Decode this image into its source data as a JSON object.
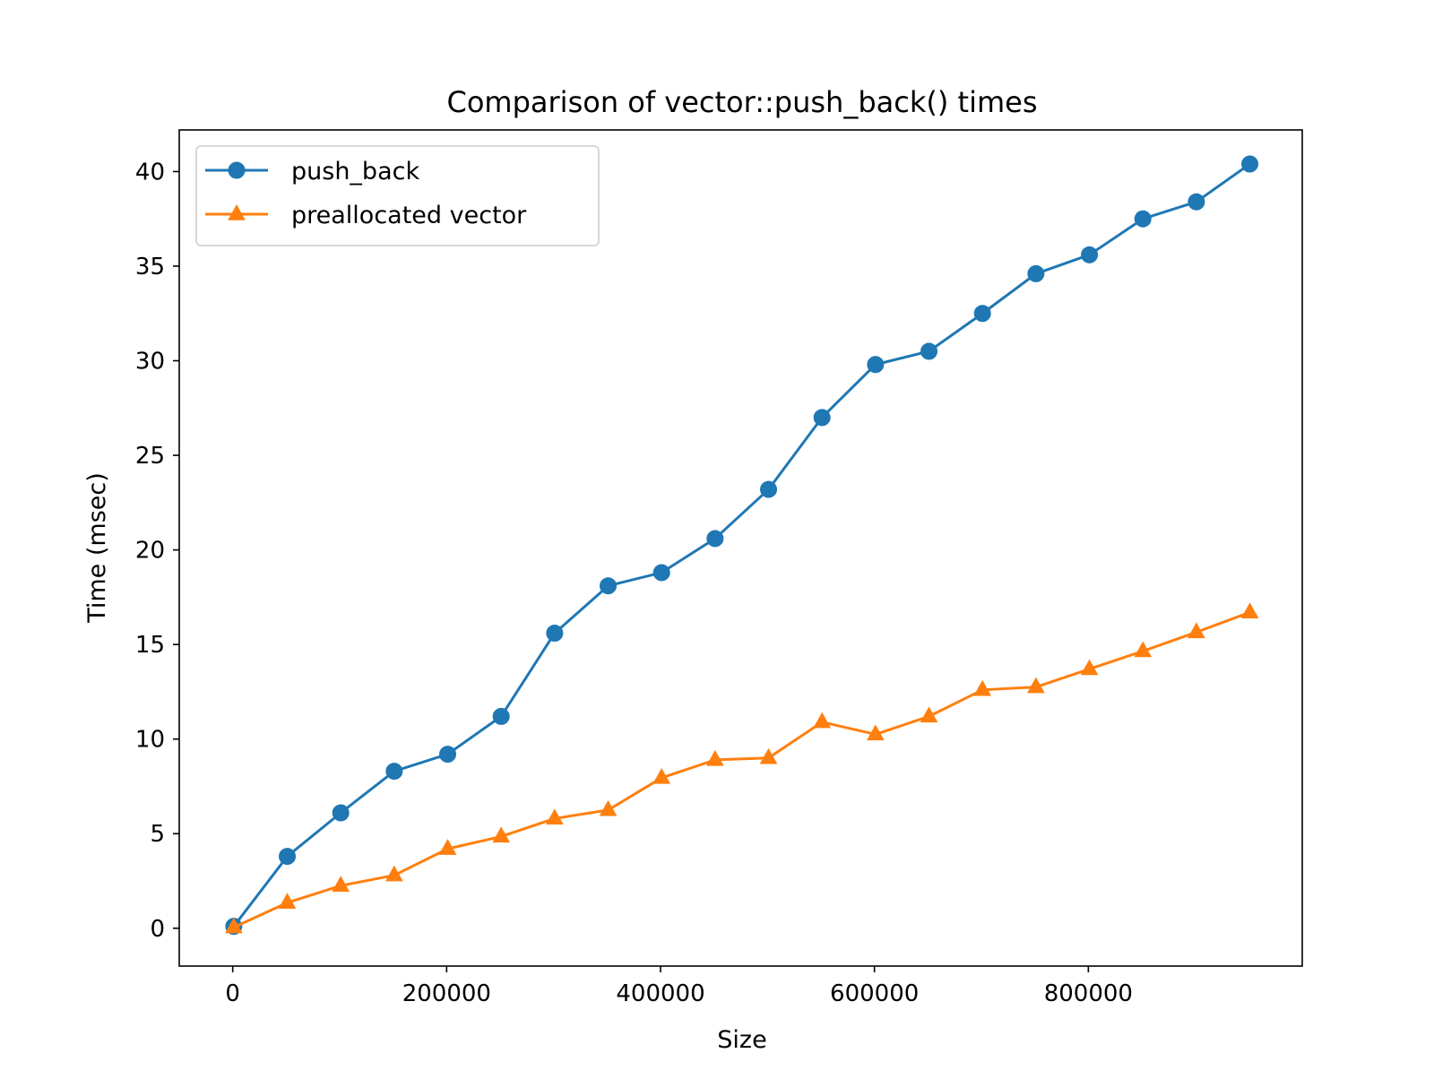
{
  "chart_data": {
    "type": "line",
    "title": "Comparison of vector::push_back() times",
    "xlabel": "Size",
    "ylabel": "Time (msec)",
    "xlim": [
      -50000,
      1000000
    ],
    "ylim": [
      -2,
      42.2
    ],
    "xticks": [
      0,
      200000,
      400000,
      600000,
      800000
    ],
    "yticks": [
      0,
      5,
      10,
      15,
      20,
      25,
      30,
      35,
      40
    ],
    "xtick_labels": [
      "0",
      "200000",
      "400000",
      "600000",
      "800000"
    ],
    "ytick_labels": [
      "0",
      "5",
      "10",
      "15",
      "20",
      "25",
      "30",
      "35",
      "40"
    ],
    "grid": false,
    "legend_position": "top-left",
    "x": [
      1000,
      51000,
      101000,
      151000,
      201000,
      251000,
      301000,
      351000,
      401000,
      451000,
      501000,
      551000,
      601000,
      651000,
      701000,
      751000,
      801000,
      851000,
      901000,
      951000
    ],
    "series": [
      {
        "name": "push_back",
        "color": "#1f77b4",
        "marker": "circle",
        "values": [
          0.1,
          3.8,
          6.1,
          8.3,
          9.2,
          11.2,
          15.6,
          18.1,
          18.8,
          20.6,
          23.2,
          27.0,
          29.8,
          30.5,
          32.5,
          34.6,
          35.6,
          37.5,
          38.4,
          40.4
        ]
      },
      {
        "name": "preallocated vector",
        "color": "#ff7f0e",
        "marker": "triangle",
        "values": [
          0.05,
          1.35,
          2.25,
          2.8,
          4.2,
          4.85,
          5.8,
          6.25,
          7.95,
          8.9,
          9.0,
          10.9,
          10.25,
          11.2,
          12.6,
          12.75,
          13.7,
          14.65,
          15.65,
          16.7
        ]
      }
    ]
  }
}
